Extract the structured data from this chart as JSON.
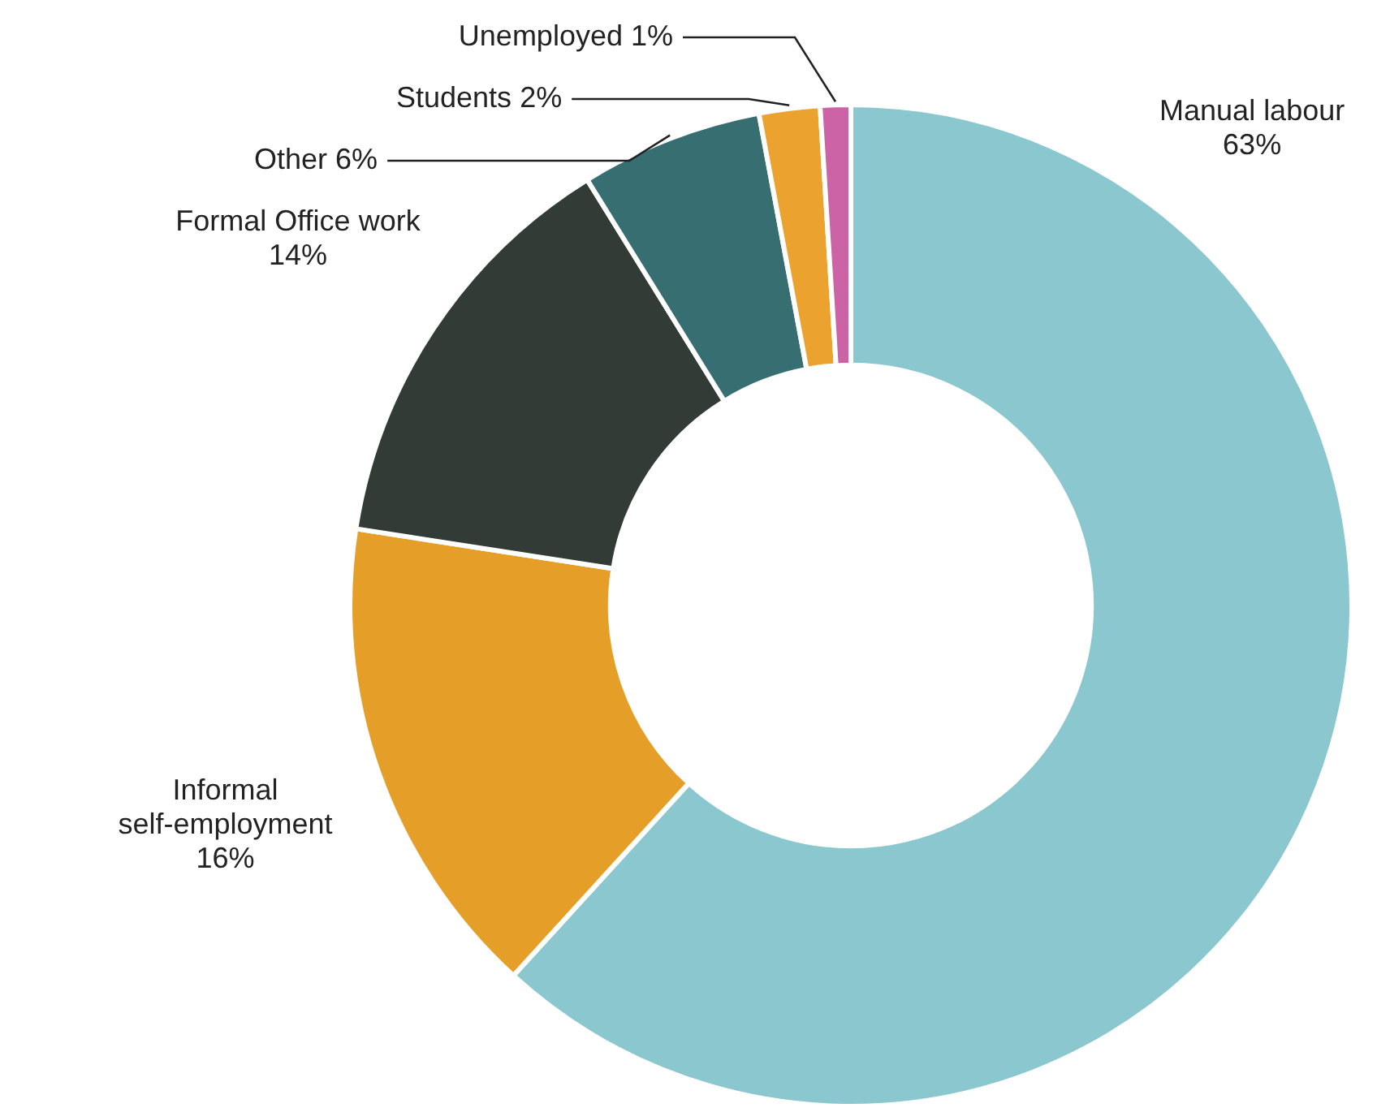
{
  "chart_data": {
    "type": "donut",
    "categories": [
      "Manual labour",
      "Informal self-employment",
      "Formal Office work",
      "Other",
      "Students",
      "Unemployed"
    ],
    "values": [
      63,
      16,
      14,
      6,
      2,
      1
    ],
    "value_labels": [
      "63%",
      "16%",
      "14%",
      "6%",
      "2%",
      "1%"
    ],
    "colors": [
      "#8bc7ce",
      "#e59f28",
      "#323b35",
      "#366e72",
      "#eba22e",
      "#cc63a6"
    ],
    "legend": false
  }
}
